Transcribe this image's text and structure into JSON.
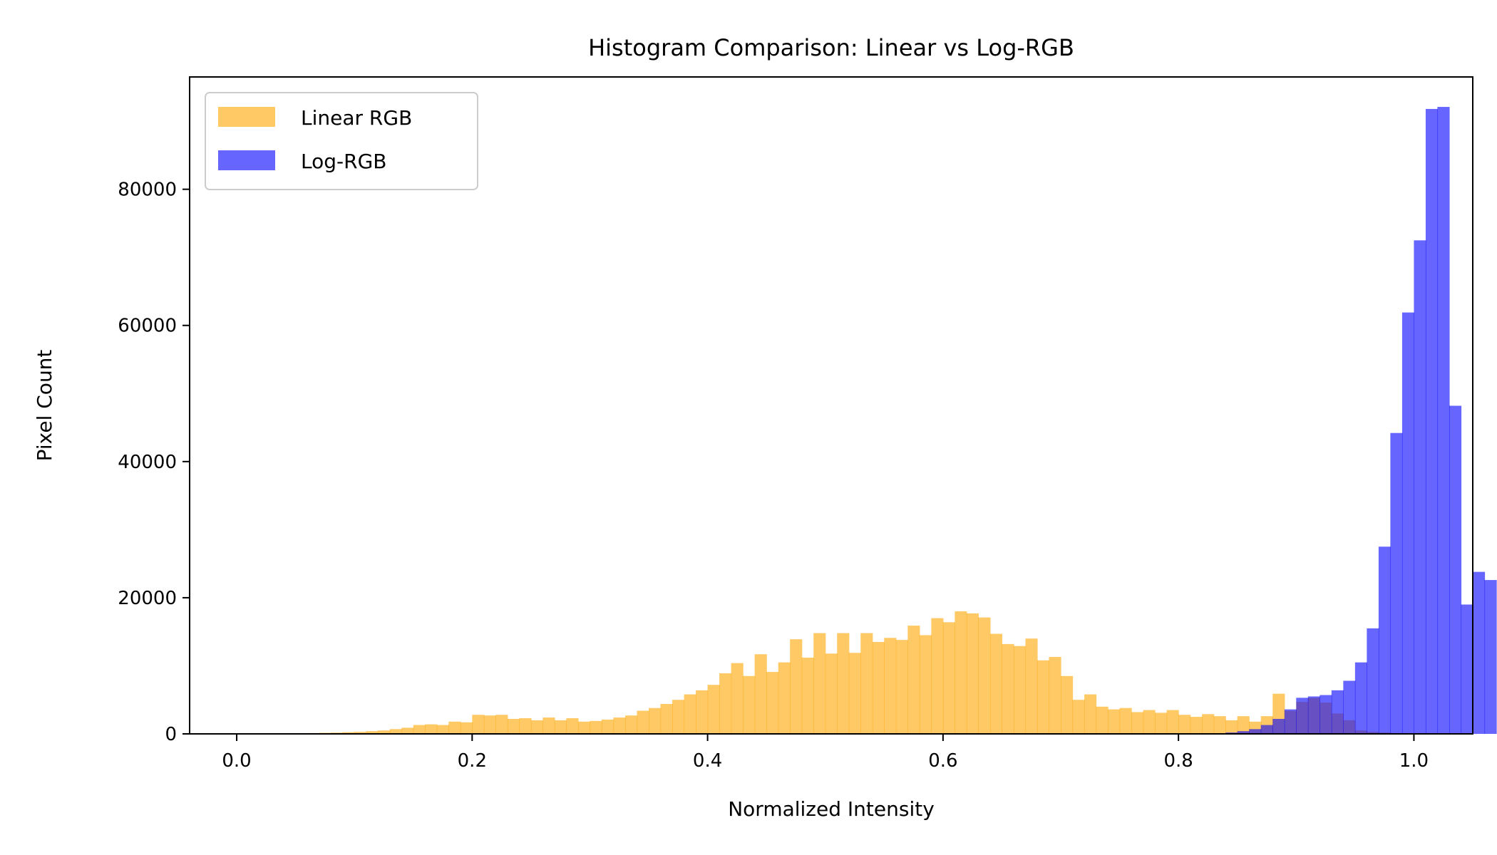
{
  "chart_data": {
    "type": "bar",
    "title": "Histogram Comparison: Linear vs Log-RGB",
    "xlabel": "Normalized Intensity",
    "ylabel": "Pixel Count",
    "xlim": [
      -0.04,
      1.05
    ],
    "ylim": [
      0,
      96500
    ],
    "xticks": [
      0.0,
      0.2,
      0.4,
      0.6,
      0.8,
      1.0
    ],
    "xtick_labels": [
      "0.0",
      "0.2",
      "0.4",
      "0.6",
      "0.8",
      "1.0"
    ],
    "yticks": [
      0,
      20000,
      40000,
      60000,
      80000
    ],
    "ytick_labels": [
      "0",
      "20000",
      "40000",
      "60000",
      "80000"
    ],
    "grid": false,
    "legend_position": "upper-left",
    "bin_width": 0.01,
    "series": [
      {
        "name": "Linear RGB",
        "color": "#ffa500",
        "opacity": 0.6,
        "bin_start": 0.0,
        "values": [
          0,
          0,
          0,
          0,
          50,
          100,
          120,
          150,
          180,
          250,
          300,
          400,
          500,
          700,
          900,
          1300,
          1400,
          1300,
          1800,
          1700,
          2800,
          2700,
          2800,
          2200,
          2300,
          2000,
          2400,
          2000,
          2300,
          1800,
          1900,
          2100,
          2400,
          2700,
          3400,
          3800,
          4400,
          5000,
          5800,
          6400,
          7200,
          8900,
          10400,
          8500,
          11700,
          9100,
          10500,
          13900,
          11200,
          14800,
          11800,
          14800,
          11900,
          14800,
          13500,
          14100,
          13800,
          15900,
          14500,
          17000,
          16400,
          18000,
          17700,
          17100,
          14700,
          13200,
          12900,
          14000,
          10800,
          11300,
          8500,
          5000,
          5800,
          4000,
          3600,
          3800,
          3200,
          3500,
          3100,
          3500,
          2800,
          2500,
          2900,
          2600,
          2000,
          2600,
          1800,
          2600,
          5900,
          3400,
          4700,
          5300,
          4600,
          3000,
          2000,
          500,
          300,
          200,
          100,
          0
        ]
      },
      {
        "name": "Log-RGB",
        "color": "#0000ff",
        "opacity": 0.6,
        "bin_start": 0.0,
        "values": [
          0,
          0,
          0,
          0,
          0,
          0,
          0,
          0,
          0,
          0,
          0,
          0,
          0,
          0,
          0,
          0,
          0,
          0,
          0,
          0,
          0,
          0,
          0,
          0,
          0,
          0,
          0,
          0,
          0,
          0,
          0,
          0,
          0,
          0,
          0,
          0,
          0,
          0,
          0,
          0,
          0,
          0,
          0,
          0,
          0,
          0,
          0,
          0,
          0,
          0,
          0,
          0,
          0,
          0,
          0,
          0,
          0,
          0,
          0,
          0,
          0,
          0,
          0,
          0,
          0,
          0,
          0,
          0,
          0,
          0,
          0,
          0,
          0,
          0,
          0,
          0,
          0,
          0,
          0,
          0,
          0,
          0,
          0,
          100,
          200,
          400,
          700,
          1300,
          2200,
          3600,
          5300,
          5500,
          5700,
          6400,
          7800,
          10500,
          15500,
          27500,
          44200,
          61900,
          72500,
          91800,
          92100,
          48200,
          19000,
          23800,
          22600
        ]
      }
    ]
  }
}
